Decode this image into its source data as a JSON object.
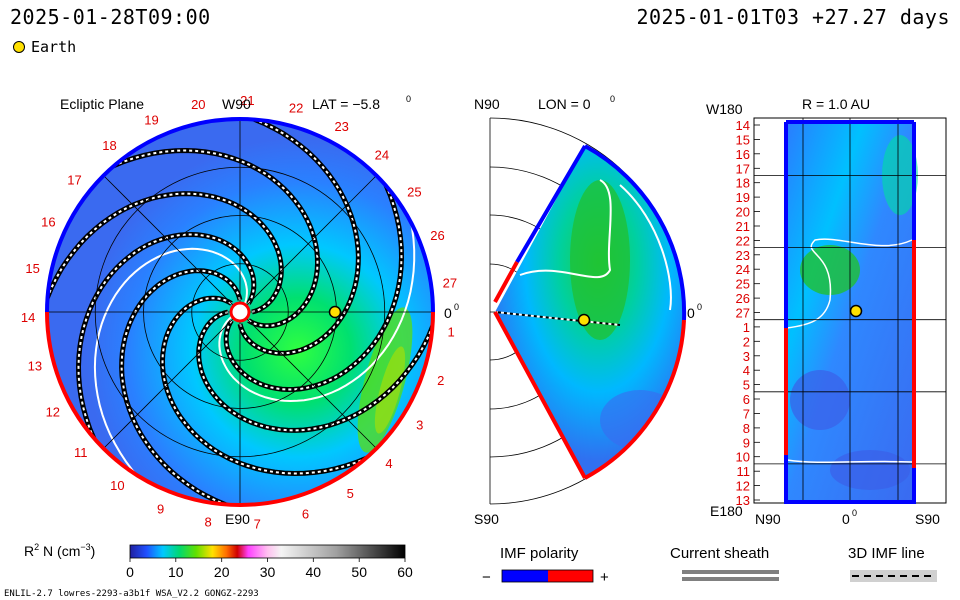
{
  "header": {
    "run_time": "2025-01-28T09:00",
    "frame_time": "2025-01-01T03 +27.27 days",
    "earth_label": "Earth"
  },
  "colors": {
    "earth": "#ffe000",
    "imf_negative": "#0000ff",
    "imf_positive": "#ff0000",
    "red_labels": "#dd0000",
    "sheath": "#808080"
  },
  "panels": {
    "ecliptic": {
      "title": "Ecliptic Plane",
      "lat_label": "LAT = −5.8",
      "lat_sup": "0",
      "top_label": "W90",
      "bottom_label": "E90",
      "right_label": "0",
      "right_sup": "0",
      "rotation_numbers": [
        "1",
        "2",
        "3",
        "4",
        "5",
        "6",
        "7",
        "8",
        "9",
        "10",
        "11",
        "12",
        "13",
        "14",
        "15",
        "16",
        "17",
        "18",
        "19",
        "20",
        "21",
        "22",
        "23",
        "24",
        "25",
        "26",
        "27"
      ]
    },
    "meridional": {
      "title": "LON = 0",
      "title_sup": "0",
      "top_label": "N90",
      "bottom_label": "S90",
      "right_label": "0",
      "right_sup": "0"
    },
    "map": {
      "title": "R = 1.0 AU",
      "top_left_label": "W180",
      "bottom_left_label": "E180",
      "x_labels": [
        "N90",
        "0",
        "S90"
      ],
      "x_sup": "0",
      "day_labels": [
        "14",
        "15",
        "16",
        "17",
        "18",
        "19",
        "20",
        "21",
        "22",
        "23",
        "24",
        "25",
        "26",
        "27",
        "1",
        "2",
        "3",
        "4",
        "5",
        "6",
        "7",
        "8",
        "9",
        "10",
        "11",
        "12",
        "13"
      ]
    }
  },
  "colorbar": {
    "label": "R",
    "label_sup": "2",
    "label_rest": " N (cm",
    "label_unit_sup": "−3",
    "label_end": ")",
    "ticks": [
      "0",
      "10",
      "20",
      "30",
      "40",
      "50",
      "60"
    ],
    "range": [
      0,
      60
    ]
  },
  "legend_items": {
    "imf_polarity": "IMF polarity",
    "imf_minus": "−",
    "imf_plus": "+",
    "current_sheath": "Current sheath",
    "imf_line": "3D IMF line"
  },
  "footer": {
    "model_info": "ENLIL-2.7 lowres-2293-a3b1f WSA_V2.2 GONGZ-2293"
  },
  "chart_data": {
    "type": "heatmap",
    "quantity": "R2 N (cm-3)",
    "color_range": [
      0,
      60
    ],
    "earth": {
      "radius_au": 1.0,
      "longitude_deg": 0
    },
    "latitude_deg": -5.8,
    "longitude_deg": 0
  }
}
